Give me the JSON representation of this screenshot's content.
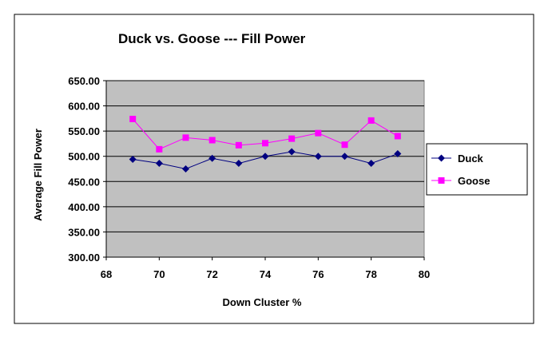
{
  "chart_data": {
    "type": "scatter",
    "title": "Duck vs. Goose --- Fill Power",
    "xlabel": "Down Cluster %",
    "ylabel": "Average Fill Power",
    "xlim": [
      68,
      80
    ],
    "ylim": [
      300,
      650
    ],
    "x_ticks": [
      68,
      70,
      72,
      74,
      76,
      78,
      80
    ],
    "y_ticks": [
      300,
      350,
      400,
      450,
      500,
      550,
      600,
      650
    ],
    "y_tick_labels": [
      "300.00",
      "350.00",
      "400.00",
      "450.00",
      "500.00",
      "550.00",
      "600.00",
      "650.00"
    ],
    "grid": "horizontal",
    "plot_background": "#c0c0c0",
    "legend_position": "right",
    "series": [
      {
        "name": "Duck",
        "color": "#000080",
        "marker": "diamond",
        "x": [
          69,
          70,
          71,
          72,
          73,
          74,
          75,
          76,
          77,
          78,
          79
        ],
        "y": [
          494,
          486,
          475,
          496,
          486,
          500,
          509,
          500,
          500,
          486,
          505
        ]
      },
      {
        "name": "Goose",
        "color": "#ff00ff",
        "marker": "square",
        "x": [
          69,
          70,
          71,
          72,
          73,
          74,
          75,
          76,
          77,
          78,
          79
        ],
        "y": [
          574,
          514,
          537,
          532,
          522,
          526,
          535,
          546,
          523,
          571,
          540
        ]
      }
    ]
  }
}
